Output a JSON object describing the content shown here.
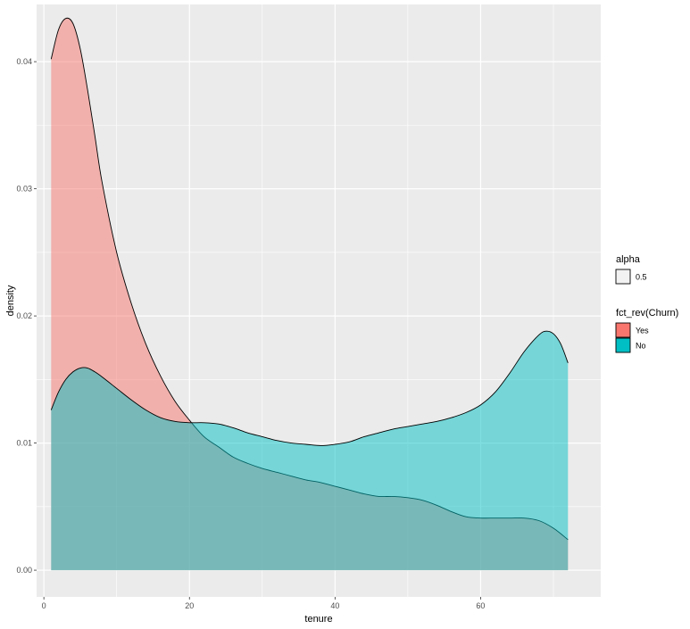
{
  "chart_data": {
    "type": "area",
    "xlabel": "tenure",
    "ylabel": "density",
    "xlim": [
      -1,
      76.5
    ],
    "ylim": [
      -0.0021,
      0.0445
    ],
    "x_ticks": [
      0,
      20,
      40,
      60
    ],
    "x_tick_labels": [
      "0",
      "20",
      "40",
      "60"
    ],
    "y_ticks": [
      0.0,
      0.01,
      0.02,
      0.03,
      0.04
    ],
    "y_tick_labels": [
      "0.00",
      "0.01",
      "0.02",
      "0.03",
      "0.04"
    ],
    "grid": true,
    "legend_position": "right",
    "legends": [
      {
        "title": "alpha",
        "entries": [
          {
            "label": "0.5",
            "fill": "#f2f2f2"
          }
        ]
      },
      {
        "title": "fct_rev(Churn)",
        "entries": [
          {
            "label": "Yes",
            "fill": "#F8766D"
          },
          {
            "label": "No",
            "fill": "#00BFC4"
          }
        ]
      }
    ],
    "series": [
      {
        "name": "Yes",
        "color": "#F8766D",
        "opacity": 0.5,
        "points": [
          [
            1,
            0.0402
          ],
          [
            2,
            0.0425
          ],
          [
            3,
            0.0434
          ],
          [
            4,
            0.043
          ],
          [
            5,
            0.041
          ],
          [
            6,
            0.0378
          ],
          [
            7,
            0.0342
          ],
          [
            8,
            0.0305
          ],
          [
            10,
            0.025
          ],
          [
            12,
            0.021
          ],
          [
            14,
            0.0178
          ],
          [
            16,
            0.0153
          ],
          [
            18,
            0.0133
          ],
          [
            20,
            0.0118
          ],
          [
            22,
            0.0105
          ],
          [
            24,
            0.0097
          ],
          [
            26,
            0.0089
          ],
          [
            28,
            0.0084
          ],
          [
            30,
            0.008
          ],
          [
            32,
            0.0077
          ],
          [
            34,
            0.0074
          ],
          [
            36,
            0.0071
          ],
          [
            38,
            0.0069
          ],
          [
            40,
            0.0066
          ],
          [
            42,
            0.0063
          ],
          [
            44,
            0.006
          ],
          [
            46,
            0.0058
          ],
          [
            48,
            0.0058
          ],
          [
            50,
            0.0057
          ],
          [
            52,
            0.0055
          ],
          [
            54,
            0.0051
          ],
          [
            56,
            0.0046
          ],
          [
            58,
            0.0042
          ],
          [
            60,
            0.0041
          ],
          [
            62,
            0.0041
          ],
          [
            64,
            0.0041
          ],
          [
            66,
            0.0041
          ],
          [
            68,
            0.0039
          ],
          [
            70,
            0.0033
          ],
          [
            72,
            0.0024
          ]
        ]
      },
      {
        "name": "No",
        "color": "#00BFC4",
        "opacity": 0.5,
        "points": [
          [
            1,
            0.0126
          ],
          [
            2,
            0.014
          ],
          [
            3,
            0.015
          ],
          [
            4,
            0.0156
          ],
          [
            5,
            0.0159
          ],
          [
            6,
            0.0159
          ],
          [
            7,
            0.0156
          ],
          [
            8,
            0.0152
          ],
          [
            10,
            0.0143
          ],
          [
            12,
            0.0134
          ],
          [
            14,
            0.0126
          ],
          [
            16,
            0.012
          ],
          [
            18,
            0.0117
          ],
          [
            20,
            0.0116
          ],
          [
            22,
            0.0116
          ],
          [
            24,
            0.0115
          ],
          [
            26,
            0.0112
          ],
          [
            28,
            0.0108
          ],
          [
            30,
            0.0105
          ],
          [
            32,
            0.0102
          ],
          [
            34,
            0.01
          ],
          [
            36,
            0.0099
          ],
          [
            38,
            0.0098
          ],
          [
            40,
            0.0099
          ],
          [
            42,
            0.0101
          ],
          [
            44,
            0.0105
          ],
          [
            46,
            0.0108
          ],
          [
            48,
            0.0111
          ],
          [
            50,
            0.0113
          ],
          [
            52,
            0.0115
          ],
          [
            54,
            0.0117
          ],
          [
            56,
            0.012
          ],
          [
            58,
            0.0124
          ],
          [
            60,
            0.013
          ],
          [
            62,
            0.014
          ],
          [
            64,
            0.0155
          ],
          [
            66,
            0.0172
          ],
          [
            68,
            0.0185
          ],
          [
            69,
            0.0188
          ],
          [
            70,
            0.0186
          ],
          [
            71,
            0.0178
          ],
          [
            72,
            0.0163
          ]
        ]
      }
    ]
  }
}
